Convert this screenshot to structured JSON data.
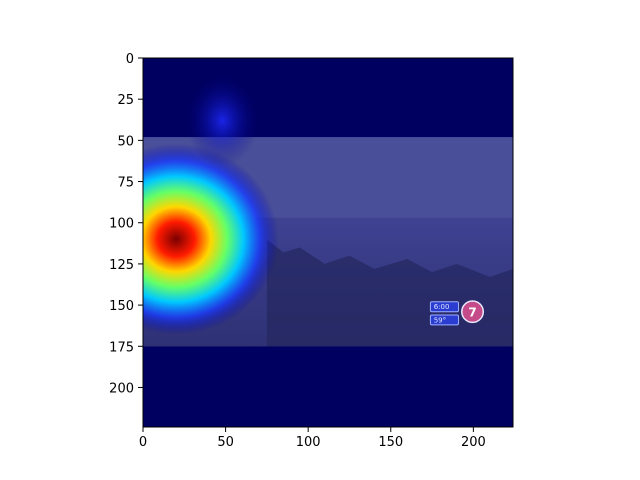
{
  "chart_data": {
    "type": "heatmap",
    "title": "",
    "xlabel": "",
    "ylabel": "",
    "xlim": [
      0,
      224
    ],
    "ylim": [
      224,
      0
    ],
    "x_ticks": [
      0,
      50,
      100,
      150,
      200
    ],
    "y_ticks": [
      0,
      25,
      50,
      75,
      100,
      125,
      150,
      175,
      200
    ],
    "x_tick_labels": [
      "0",
      "50",
      "100",
      "150",
      "200"
    ],
    "y_tick_labels": [
      "0",
      "25",
      "50",
      "75",
      "100",
      "125",
      "150",
      "175",
      "200"
    ],
    "colormap": "jet",
    "grid": false,
    "legend": "none",
    "photo_band_rows": [
      48,
      175
    ],
    "activation_peak": {
      "x": 20,
      "y": 110
    },
    "background_color": "#000060",
    "photo_tint": "#4a4f9a",
    "overlay_badge_lines": [
      "6:00",
      "59°"
    ],
    "overlay_logo_text": "7"
  }
}
